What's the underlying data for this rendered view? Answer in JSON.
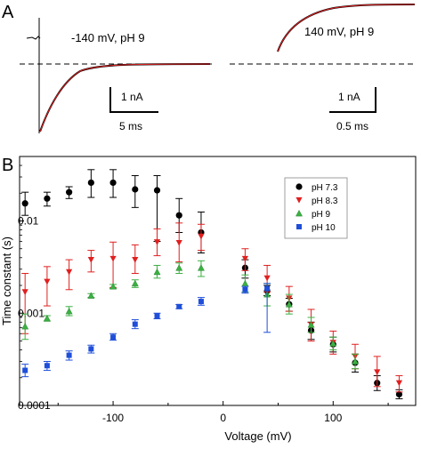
{
  "panel_a": {
    "letter": "A",
    "left_label": "-140 mV, pH 9",
    "right_label": "140 mV, pH 9",
    "scale_left_current": "1 nA",
    "scale_left_time": "5 ms",
    "scale_right_current": "1 nA",
    "scale_right_time": "0.5 ms"
  },
  "panel_b": {
    "letter": "B"
  },
  "chart_data": {
    "type": "scatter",
    "xlabel": "Voltage (mV)",
    "ylabel": "Time constant (s)",
    "xlim": [
      -185,
      175
    ],
    "ylim": [
      0.0001,
      0.05
    ],
    "yscale": "log",
    "x_ticks": [
      -100,
      0,
      100
    ],
    "x_tick_labels": [
      "-100",
      "0",
      "100"
    ],
    "y_ticks": [
      0.0001,
      0.001,
      0.01
    ],
    "y_tick_labels": [
      "0.0001",
      "0.001",
      "0.01"
    ],
    "grid": false,
    "legend_position": "top-right",
    "series": [
      {
        "name": "pH 7.3",
        "color": "#000000",
        "marker": "circle",
        "points": [
          {
            "x": -180,
            "y": 0.0155,
            "lo": 0.0115,
            "hi": 0.0205
          },
          {
            "x": -160,
            "y": 0.0175,
            "lo": 0.0145,
            "hi": 0.0205
          },
          {
            "x": -140,
            "y": 0.0205,
            "lo": 0.0175,
            "hi": 0.0235
          },
          {
            "x": -120,
            "y": 0.026,
            "lo": 0.018,
            "hi": 0.036
          },
          {
            "x": -100,
            "y": 0.026,
            "lo": 0.018,
            "hi": 0.036
          },
          {
            "x": -80,
            "y": 0.022,
            "lo": 0.014,
            "hi": 0.031
          },
          {
            "x": -60,
            "y": 0.0215,
            "lo": 0.006,
            "hi": 0.031
          },
          {
            "x": -40,
            "y": 0.0115,
            "lo": 0.0075,
            "hi": 0.0175
          },
          {
            "x": -20,
            "y": 0.0075,
            "lo": 0.0045,
            "hi": 0.0125
          },
          {
            "x": 20,
            "y": 0.0031,
            "lo": 0.0024,
            "hi": 0.0038
          },
          {
            "x": 40,
            "y": 0.00175,
            "lo": 0.00155,
            "hi": 0.002
          },
          {
            "x": 60,
            "y": 0.00125,
            "lo": 0.00105,
            "hi": 0.00145
          },
          {
            "x": 80,
            "y": 0.00065,
            "lo": 0.00052,
            "hi": 0.0008
          },
          {
            "x": 100,
            "y": 0.00046,
            "lo": 0.00038,
            "hi": 0.00055
          },
          {
            "x": 120,
            "y": 0.00029,
            "lo": 0.00023,
            "hi": 0.00036
          },
          {
            "x": 140,
            "y": 0.000175,
            "lo": 0.000145,
            "hi": 0.00021
          },
          {
            "x": 160,
            "y": 0.000132,
            "lo": 0.000118,
            "hi": 0.000148
          }
        ]
      },
      {
        "name": "pH 8.3",
        "color": "#e02020",
        "marker": "triangle-down",
        "points": [
          {
            "x": -180,
            "y": 0.0017,
            "lo": 0.0006,
            "hi": 0.0027
          },
          {
            "x": -160,
            "y": 0.0022,
            "lo": 0.0012,
            "hi": 0.0032
          },
          {
            "x": -140,
            "y": 0.0028,
            "lo": 0.0018,
            "hi": 0.0038
          },
          {
            "x": -120,
            "y": 0.0038,
            "lo": 0.0028,
            "hi": 0.0048
          },
          {
            "x": -100,
            "y": 0.0039,
            "lo": 0.0019,
            "hi": 0.0059
          },
          {
            "x": -80,
            "y": 0.0038,
            "lo": 0.0027,
            "hi": 0.0055
          },
          {
            "x": -60,
            "y": 0.0059,
            "lo": 0.0042,
            "hi": 0.0082
          },
          {
            "x": -40,
            "y": 0.0058,
            "lo": 0.0036,
            "hi": 0.0095
          },
          {
            "x": -20,
            "y": 0.0068,
            "lo": 0.0048,
            "hi": 0.0092
          },
          {
            "x": 20,
            "y": 0.0039,
            "lo": 0.0029,
            "hi": 0.005
          },
          {
            "x": 40,
            "y": 0.0024,
            "lo": 0.0017,
            "hi": 0.0033
          },
          {
            "x": 60,
            "y": 0.00145,
            "lo": 0.00105,
            "hi": 0.00195
          },
          {
            "x": 80,
            "y": 0.00075,
            "lo": 0.0005,
            "hi": 0.0011
          },
          {
            "x": 100,
            "y": 0.00048,
            "lo": 0.00036,
            "hi": 0.00064
          },
          {
            "x": 120,
            "y": 0.00034,
            "lo": 0.00025,
            "hi": 0.00046
          },
          {
            "x": 140,
            "y": 0.00023,
            "lo": 0.00016,
            "hi": 0.00034
          },
          {
            "x": 160,
            "y": 0.000175,
            "lo": 0.00014,
            "hi": 0.00021
          }
        ]
      },
      {
        "name": "pH 9",
        "color": "#3cb043",
        "marker": "triangle-up",
        "points": [
          {
            "x": -180,
            "y": 0.00072,
            "lo": 0.00052,
            "hi": 0.00098
          },
          {
            "x": -160,
            "y": 0.00088,
            "lo": 0.00082,
            "hi": 0.00094
          },
          {
            "x": -140,
            "y": 0.00105,
            "lo": 0.00094,
            "hi": 0.00118
          },
          {
            "x": -120,
            "y": 0.00155,
            "lo": 0.00148,
            "hi": 0.00163
          },
          {
            "x": -100,
            "y": 0.00195,
            "lo": 0.00185,
            "hi": 0.00205
          },
          {
            "x": -80,
            "y": 0.0021,
            "lo": 0.0019,
            "hi": 0.0023
          },
          {
            "x": -60,
            "y": 0.0028,
            "lo": 0.0024,
            "hi": 0.0033
          },
          {
            "x": -40,
            "y": 0.0031,
            "lo": 0.0027,
            "hi": 0.0035
          },
          {
            "x": -20,
            "y": 0.0031,
            "lo": 0.0025,
            "hi": 0.0037
          },
          {
            "x": 20,
            "y": 0.0021,
            "lo": 0.0017,
            "hi": 0.0026
          },
          {
            "x": 40,
            "y": 0.0016,
            "lo": 0.0012,
            "hi": 0.0021
          },
          {
            "x": 60,
            "y": 0.00125,
            "lo": 0.00098,
            "hi": 0.0016
          },
          {
            "x": 80,
            "y": 0.00075,
            "lo": 0.00062,
            "hi": 0.0009
          },
          {
            "x": 100,
            "y": 0.00047,
            "lo": 0.0004,
            "hi": 0.00055
          },
          {
            "x": 120,
            "y": 0.0003,
            "lo": 0.00025,
            "hi": 0.00036
          }
        ]
      },
      {
        "name": "pH 10",
        "color": "#1f4fd8",
        "marker": "square",
        "points": [
          {
            "x": -180,
            "y": 0.00024,
            "lo": 0.000205,
            "hi": 0.00028
          },
          {
            "x": -160,
            "y": 0.00027,
            "lo": 0.00024,
            "hi": 0.0003
          },
          {
            "x": -140,
            "y": 0.00035,
            "lo": 0.00031,
            "hi": 0.00039
          },
          {
            "x": -120,
            "y": 0.00041,
            "lo": 0.00037,
            "hi": 0.00045
          },
          {
            "x": -100,
            "y": 0.00055,
            "lo": 0.00051,
            "hi": 0.0006
          },
          {
            "x": -80,
            "y": 0.00076,
            "lo": 0.00068,
            "hi": 0.00085
          },
          {
            "x": -60,
            "y": 0.00093,
            "lo": 0.00087,
            "hi": 0.001
          },
          {
            "x": -40,
            "y": 0.00118,
            "lo": 0.00112,
            "hi": 0.00124
          },
          {
            "x": -20,
            "y": 0.00134,
            "lo": 0.00122,
            "hi": 0.00148
          },
          {
            "x": 20,
            "y": 0.0018,
            "lo": 0.00165,
            "hi": 0.00195
          },
          {
            "x": 40,
            "y": 0.00185,
            "lo": 0.00062,
            "hi": 0.0021
          }
        ]
      }
    ]
  }
}
